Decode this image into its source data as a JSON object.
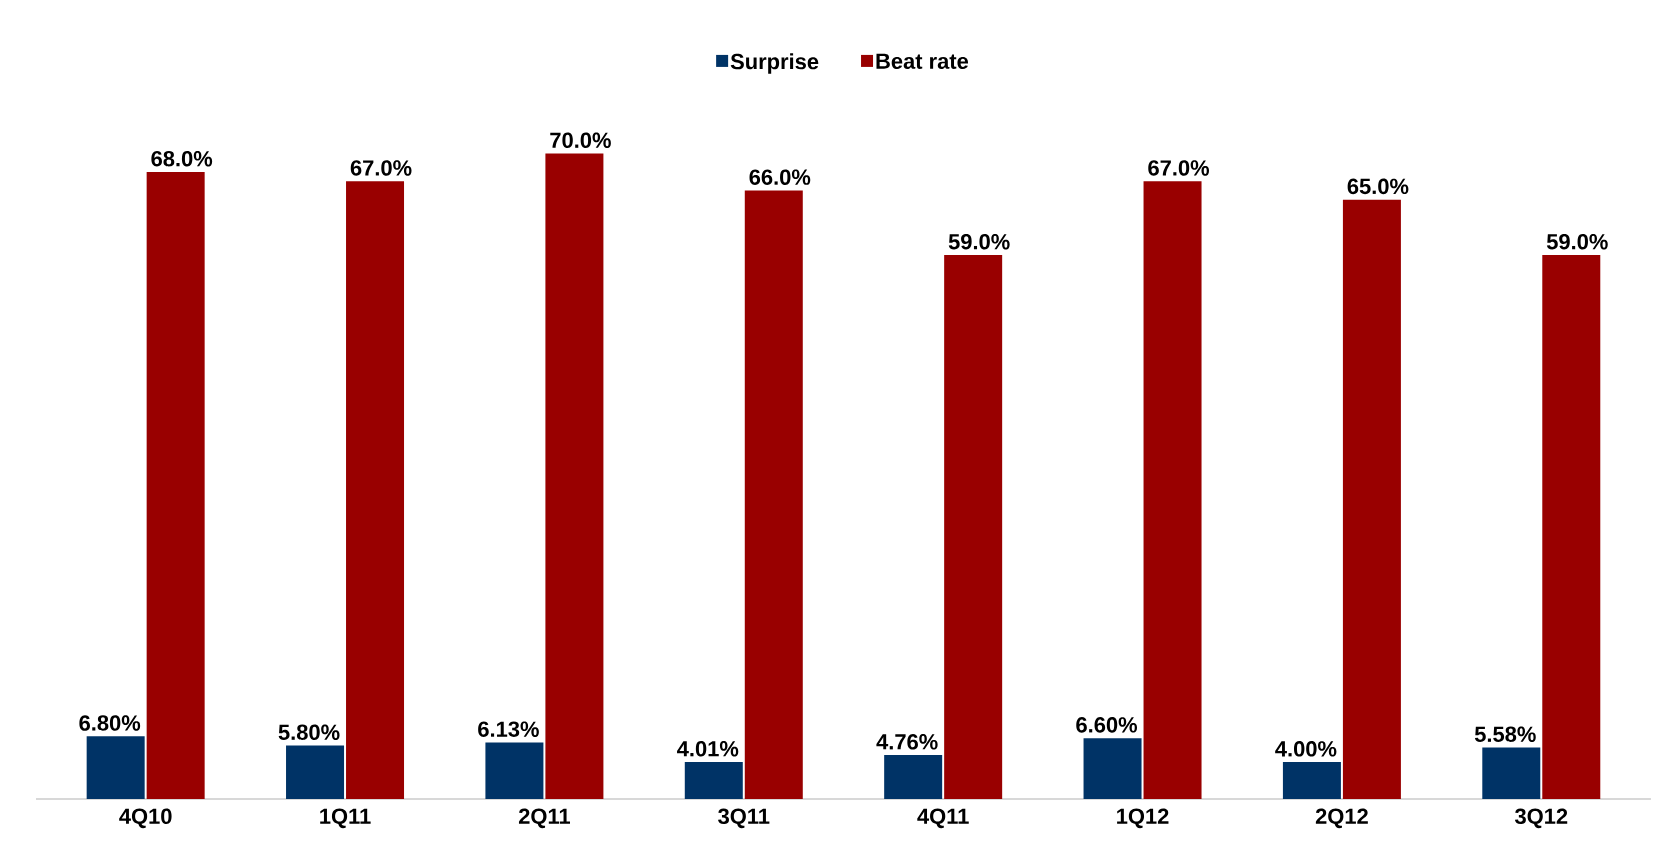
{
  "chart_data": {
    "type": "bar",
    "categories": [
      "4Q10",
      "1Q11",
      "2Q11",
      "3Q11",
      "4Q11",
      "1Q12",
      "2Q12",
      "3Q12"
    ],
    "series": [
      {
        "name": "Surprise",
        "color": "#003366",
        "values": [
          6.8,
          5.8,
          6.13,
          4.01,
          4.76,
          6.6,
          4.0,
          5.58
        ],
        "value_labels": [
          "6.80%",
          "5.80%",
          "6.13%",
          "4.01%",
          "4.76%",
          "6.60%",
          "4.00%",
          "5.58%"
        ]
      },
      {
        "name": "Beat rate",
        "color": "#990000",
        "values": [
          68.0,
          67.0,
          70.0,
          66.0,
          59.0,
          67.0,
          65.0,
          59.0
        ],
        "value_labels": [
          "68.0%",
          "67.0%",
          "70.0%",
          "66.0%",
          "59.0%",
          "67.0%",
          "65.0%",
          "59.0%"
        ]
      }
    ],
    "legend": "top"
  }
}
